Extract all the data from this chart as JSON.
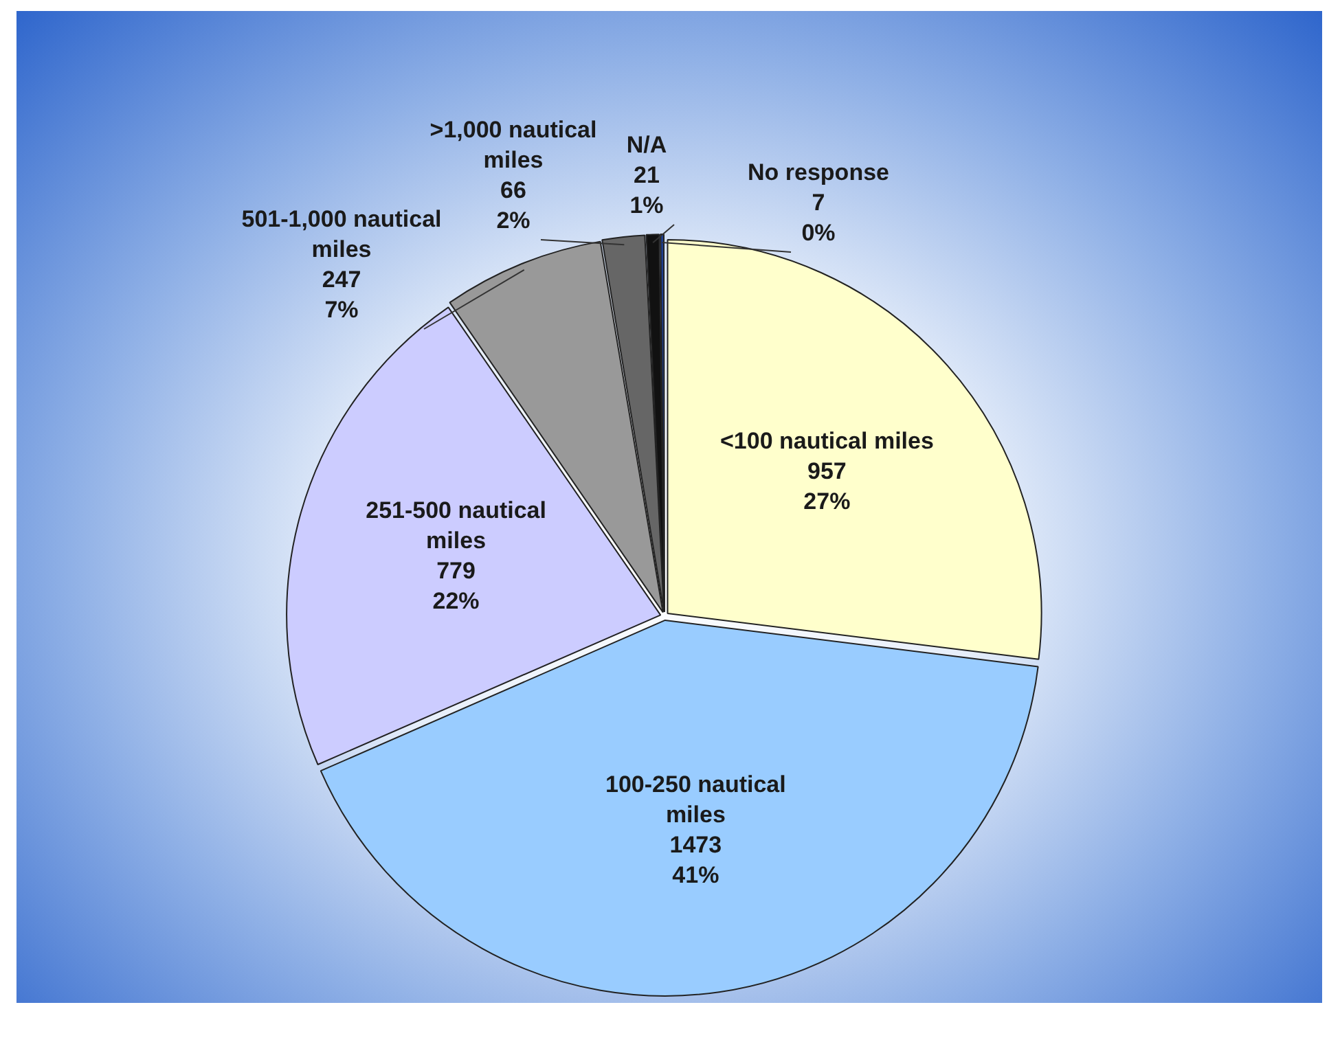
{
  "chart_data": {
    "type": "pie",
    "categories": [
      "<100 nautical miles",
      "100-250 nautical miles",
      "251-500 nautical miles",
      "501-1,000 nautical miles",
      ">1,000 nautical miles",
      "N/A",
      "No response"
    ],
    "values": [
      957,
      1473,
      779,
      247,
      66,
      21,
      7
    ],
    "colors": [
      "#ffffcc",
      "#99ccff",
      "#ccccff",
      "#999999",
      "#666666",
      "#111111",
      "#1f3f8f"
    ],
    "value_labels": [
      "957\n27%",
      "1473\n41%",
      "779\n22%",
      "247\n7%",
      "66\n2%",
      "21\n1%",
      "7\n0%"
    ],
    "legend": false
  }
}
